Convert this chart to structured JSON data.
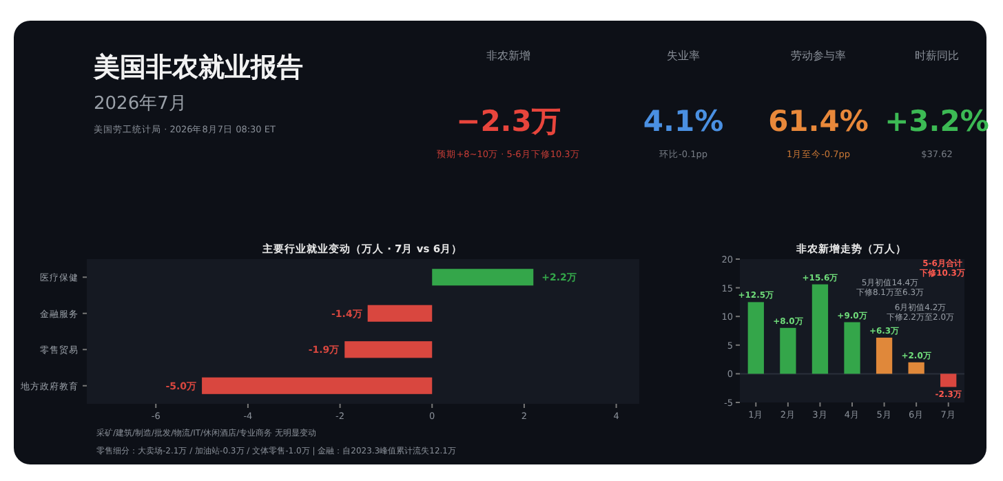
{
  "chart_data": [
    {
      "type": "other",
      "title": "美国非农就业报告",
      "subtitle": "2026年7月",
      "annotations": [
        "美国劳工统计局 · 2026年8月7日 08:30 ET",
        "非农新增",
        "−2.3万",
        "预期+8~10万 · 5-6月下修10.3万",
        "失业率",
        "4.1%",
        "环比-0.1pp",
        "劳动参与率",
        "61.4%",
        "1月至今-0.7pp",
        "时薪同比",
        "+3.2%",
        "$37.62"
      ],
      "colors": [
        "#e8453c",
        "#4a90e2",
        "#e8883a",
        "#3cba54"
      ]
    },
    {
      "type": "bar",
      "orientation": "horizontal",
      "title": "主要行业就业变动（万人 · 7月 vs 6月）",
      "categories": [
        "医疗保健",
        "金融服务",
        "零售贸易",
        "地方政府教育"
      ],
      "values": [
        2.2,
        -1.4,
        -1.9,
        -5.0
      ],
      "colors": [
        "#34a64a",
        "#d9473f",
        "#d9473f",
        "#d9473f"
      ],
      "value_labels": [
        "+2.2万",
        "-1.4万",
        "-1.9万",
        "-5.0万"
      ],
      "xlim": [
        -7.5,
        4.5
      ],
      "xticks": [
        -6,
        -4,
        -2,
        0,
        2,
        4
      ],
      "annotations": [
        "采矿/建筑/制造/批发/物流/IT/休闲酒店/专业商务 无明显变动",
        "零售细分：大卖场-2.1万 / 加油站-0.3万 / 文体零售-1.0万 | 金融：自2023.3峰值累计流失12.1万"
      ]
    },
    {
      "type": "bar",
      "title": "非农新增走势（万人）",
      "categories": [
        "1月",
        "2月",
        "3月",
        "4月",
        "5月",
        "6月",
        "7月"
      ],
      "values": [
        12.5,
        8.0,
        15.6,
        9.0,
        6.3,
        2.0,
        -2.3
      ],
      "colors": [
        "#34a64a",
        "#34a64a",
        "#34a64a",
        "#34a64a",
        "#e0883a",
        "#e0883a",
        "#d9473f"
      ],
      "value_labels": [
        "+12.5万",
        "+8.0万",
        "+15.6万",
        "+9.0万",
        "+6.3万",
        "+2.0万",
        "-2.3万"
      ],
      "ylim": [
        -5,
        20
      ],
      "yticks": [
        -5,
        0,
        5,
        10,
        15,
        20
      ],
      "annotations": [
        "5-6月合计下修10.3万",
        "5月初值14.4万下修8.1万至6.3万",
        "6月初值4.2万下修2.2万至2.0万"
      ]
    }
  ]
}
